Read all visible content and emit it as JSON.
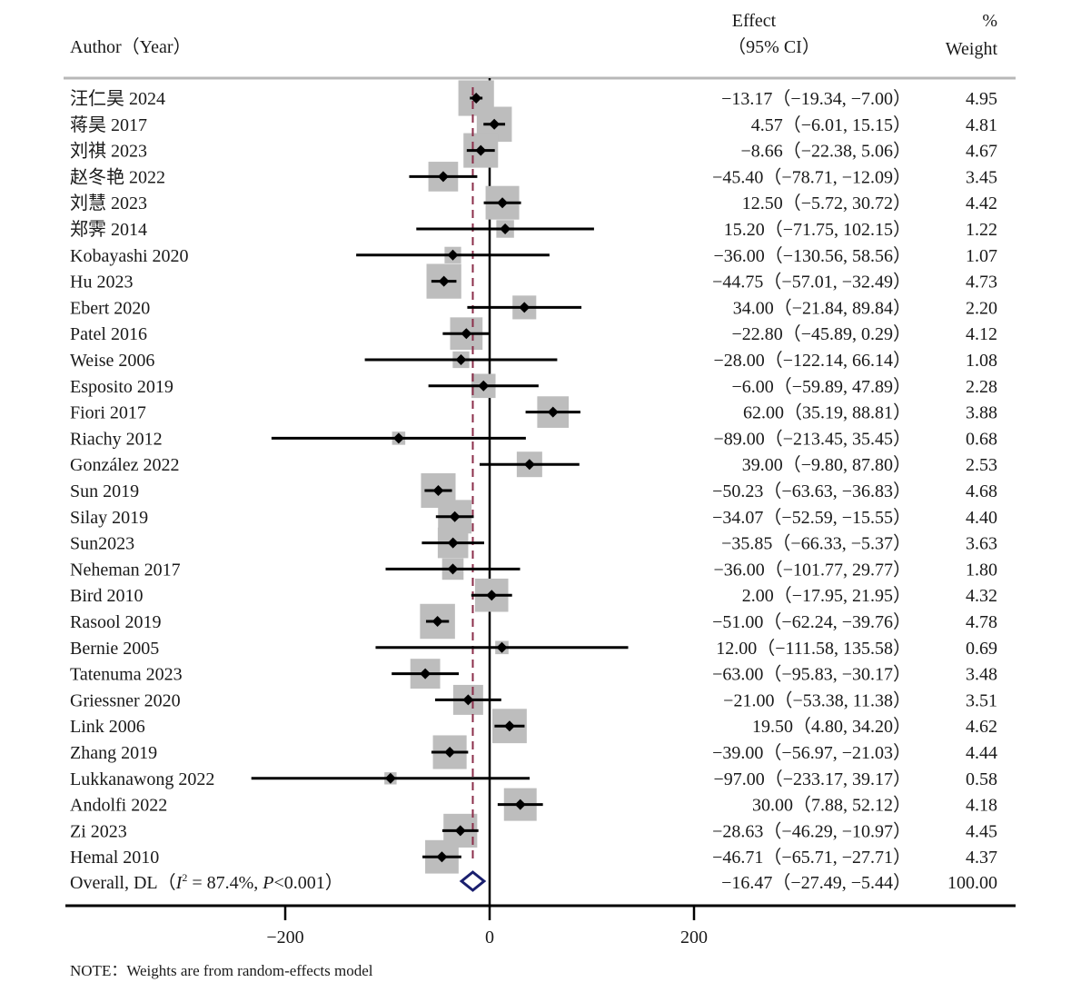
{
  "chart_data": {
    "type": "forest",
    "title": "",
    "headers": {
      "study": "Author（Year）",
      "effect_line1": "Effect",
      "effect_line2": "（95% CI）",
      "weight_line1": "%",
      "weight_line2": "Weight"
    },
    "xlim": [
      -233.17,
      160
    ],
    "x_ticks": [
      -200,
      0,
      200
    ],
    "x_tick_labels": [
      "−200",
      "0",
      "200"
    ],
    "null_line": 0,
    "studies": [
      {
        "label": "汪仁昊  2024",
        "effect": -13.17,
        "lo": -19.34,
        "hi": -7.0,
        "weight": 4.95,
        "text": "−13.17（−19.34, −7.00）",
        "weight_text": "4.95"
      },
      {
        "label": "蒋昊  2017",
        "effect": 4.57,
        "lo": -6.01,
        "hi": 15.15,
        "weight": 4.81,
        "text": "4.57（−6.01, 15.15）",
        "weight_text": "4.81"
      },
      {
        "label": "刘祺  2023",
        "effect": -8.66,
        "lo": -22.38,
        "hi": 5.06,
        "weight": 4.67,
        "text": "−8.66（−22.38, 5.06）",
        "weight_text": "4.67"
      },
      {
        "label": "赵冬艳  2022",
        "effect": -45.4,
        "lo": -78.71,
        "hi": -12.09,
        "weight": 3.45,
        "text": "−45.40（−78.71, −12.09）",
        "weight_text": "3.45"
      },
      {
        "label": "刘慧  2023",
        "effect": 12.5,
        "lo": -5.72,
        "hi": 30.72,
        "weight": 4.42,
        "text": "12.50（−5.72, 30.72）",
        "weight_text": "4.42"
      },
      {
        "label": "郑霁  2014",
        "effect": 15.2,
        "lo": -71.75,
        "hi": 102.15,
        "weight": 1.22,
        "text": "15.20（−71.75, 102.15）",
        "weight_text": "1.22"
      },
      {
        "label": "Kobayashi  2020",
        "effect": -36.0,
        "lo": -130.56,
        "hi": 58.56,
        "weight": 1.07,
        "text": "−36.00（−130.56, 58.56）",
        "weight_text": "1.07"
      },
      {
        "label": "Hu  2023",
        "effect": -44.75,
        "lo": -57.01,
        "hi": -32.49,
        "weight": 4.73,
        "text": "−44.75（−57.01, −32.49）",
        "weight_text": "4.73"
      },
      {
        "label": "Ebert 2020",
        "effect": 34.0,
        "lo": -21.84,
        "hi": 89.84,
        "weight": 2.2,
        "text": "34.00（−21.84, 89.84）",
        "weight_text": "2.20"
      },
      {
        "label": "Patel 2016",
        "effect": -22.8,
        "lo": -45.89,
        "hi": 0.29,
        "weight": 4.12,
        "text": "−22.80（−45.89, 0.29）",
        "weight_text": "4.12"
      },
      {
        "label": "Weise 2006",
        "effect": -28.0,
        "lo": -122.14,
        "hi": 66.14,
        "weight": 1.08,
        "text": "−28.00（−122.14, 66.14）",
        "weight_text": "1.08"
      },
      {
        "label": "Esposito 2019",
        "effect": -6.0,
        "lo": -59.89,
        "hi": 47.89,
        "weight": 2.28,
        "text": "−6.00（−59.89, 47.89）",
        "weight_text": "2.28"
      },
      {
        "label": "Fiori 2017",
        "effect": 62.0,
        "lo": 35.19,
        "hi": 88.81,
        "weight": 3.88,
        "text": "62.00（35.19, 88.81）",
        "weight_text": "3.88"
      },
      {
        "label": "Riachy 2012",
        "effect": -89.0,
        "lo": -213.45,
        "hi": 35.45,
        "weight": 0.68,
        "text": "−89.00（−213.45, 35.45）",
        "weight_text": "0.68"
      },
      {
        "label": "González 2022",
        "effect": 39.0,
        "lo": -9.8,
        "hi": 87.8,
        "weight": 2.53,
        "text": "39.00（−9.80, 87.80）",
        "weight_text": "2.53"
      },
      {
        "label": "Sun 2019",
        "effect": -50.23,
        "lo": -63.63,
        "hi": -36.83,
        "weight": 4.68,
        "text": "−50.23（−63.63, −36.83）",
        "weight_text": "4.68"
      },
      {
        "label": "Silay 2019",
        "effect": -34.07,
        "lo": -52.59,
        "hi": -15.55,
        "weight": 4.4,
        "text": "−34.07（−52.59, −15.55）",
        "weight_text": "4.40"
      },
      {
        "label": "Sun2023",
        "effect": -35.85,
        "lo": -66.33,
        "hi": -5.37,
        "weight": 3.63,
        "text": "−35.85（−66.33, −5.37）",
        "weight_text": "3.63"
      },
      {
        "label": "Neheman 2017",
        "effect": -36.0,
        "lo": -101.77,
        "hi": 29.77,
        "weight": 1.8,
        "text": "−36.00（−101.77, 29.77）",
        "weight_text": "1.80"
      },
      {
        "label": "Bird 2010",
        "effect": 2.0,
        "lo": -17.95,
        "hi": 21.95,
        "weight": 4.32,
        "text": "2.00（−17.95, 21.95）",
        "weight_text": "4.32"
      },
      {
        "label": "Rasool 2019",
        "effect": -51.0,
        "lo": -62.24,
        "hi": -39.76,
        "weight": 4.78,
        "text": "−51.00（−62.24, −39.76）",
        "weight_text": "4.78"
      },
      {
        "label": "Bernie 2005",
        "effect": 12.0,
        "lo": -111.58,
        "hi": 135.58,
        "weight": 0.69,
        "text": "12.00（−111.58, 135.58）",
        "weight_text": "0.69"
      },
      {
        "label": "Tatenuma 2023",
        "effect": -63.0,
        "lo": -95.83,
        "hi": -30.17,
        "weight": 3.48,
        "text": "−63.00（−95.83, −30.17）",
        "weight_text": "3.48"
      },
      {
        "label": "Griessner 2020",
        "effect": -21.0,
        "lo": -53.38,
        "hi": 11.38,
        "weight": 3.51,
        "text": "−21.00（−53.38, 11.38）",
        "weight_text": "3.51"
      },
      {
        "label": "Link 2006",
        "effect": 19.5,
        "lo": 4.8,
        "hi": 34.2,
        "weight": 4.62,
        "text": "19.50（4.80, 34.20）",
        "weight_text": "4.62"
      },
      {
        "label": "Zhang 2019",
        "effect": -39.0,
        "lo": -56.97,
        "hi": -21.03,
        "weight": 4.44,
        "text": "−39.00（−56.97, −21.03）",
        "weight_text": "4.44"
      },
      {
        "label": "Lukkanawong 2022",
        "effect": -97.0,
        "lo": -233.17,
        "hi": 39.17,
        "weight": 0.58,
        "text": "−97.00（−233.17, 39.17）",
        "weight_text": "0.58"
      },
      {
        "label": "Andolfi 2022",
        "effect": 30.0,
        "lo": 7.88,
        "hi": 52.12,
        "weight": 4.18,
        "text": "30.00（7.88, 52.12）",
        "weight_text": "4.18"
      },
      {
        "label": "Zi  2023",
        "effect": -28.63,
        "lo": -46.29,
        "hi": -10.97,
        "weight": 4.45,
        "text": "−28.63（−46.29, −10.97）",
        "weight_text": "4.45"
      },
      {
        "label": "Hemal  2010",
        "effect": -46.71,
        "lo": -65.71,
        "hi": -27.71,
        "weight": 4.37,
        "text": "−46.71（−65.71, −27.71）",
        "weight_text": "4.37"
      }
    ],
    "overall": {
      "label_prefix": "Overall, DL（",
      "i2_symbol": "I",
      "i2_sup": "2",
      "i2_rest": " = 87.4%, ",
      "p_symbol": "P",
      "p_rest": "<0.001）",
      "effect": -16.47,
      "lo": -27.49,
      "hi": -5.44,
      "weight": 100.0,
      "text": "−16.47（−27.49, −5.44）",
      "weight_text": "100.00"
    },
    "note": "NOTE：Weights are from random-effects model",
    "colors": {
      "box": "#bdbdbd",
      "line": "#000000",
      "pooled_line": "#8b2e4a",
      "diamond": "#1a1f6e",
      "header_rule": "#b8b8b8"
    }
  }
}
